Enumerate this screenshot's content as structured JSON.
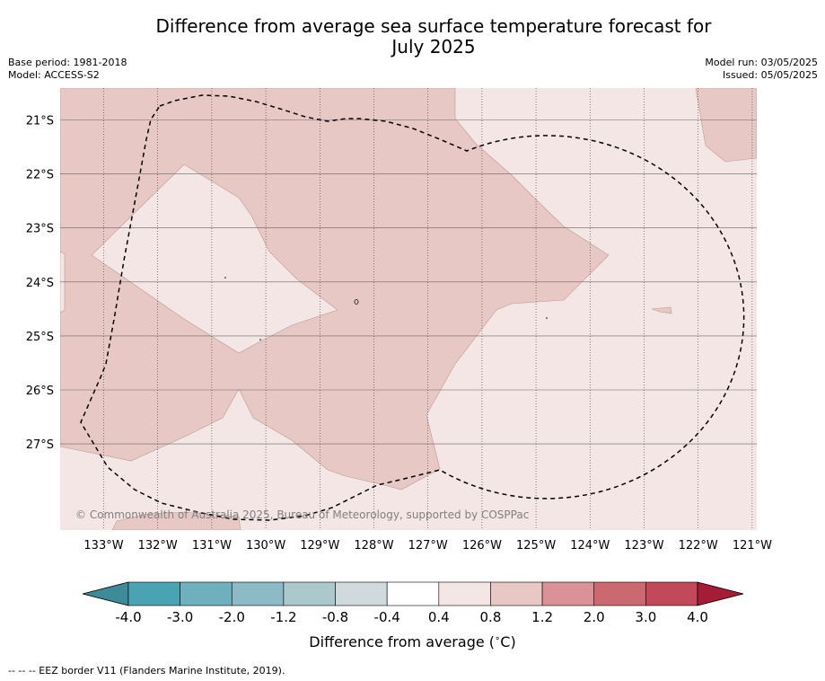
{
  "header": {
    "title_line1": "Difference from average sea surface temperature forecast for",
    "title_line2": "July 2025",
    "base_period": "Base period: 1981-2018",
    "model": "Model: ACCESS-S2",
    "model_run": "Model run: 03/05/2025",
    "issued": "Issued: 05/05/2025"
  },
  "map": {
    "lon_labels": [
      "133°W",
      "132°W",
      "131°W",
      "130°W",
      "129°W",
      "128°W",
      "127°W",
      "126°W",
      "125°W",
      "124°W",
      "123°W",
      "122°W",
      "121°W"
    ],
    "lat_labels": [
      "21°S",
      "22°S",
      "23°S",
      "24°S",
      "25°S",
      "26°S",
      "27°S"
    ],
    "copyright": "© Commonwealth of Australia 2025, Bureau of Meteorology, supported by COSPPac",
    "colors": {
      "warm_0_4_0_8": "#f4e6e5",
      "warm_0_8_1_2": "#e8c8c4"
    }
  },
  "colorbar": {
    "ticks": [
      "-4.0",
      "-3.0",
      "-2.0",
      "-1.2",
      "-0.8",
      "-0.4",
      "0.4",
      "0.8",
      "1.2",
      "2.0",
      "3.0",
      "4.0"
    ],
    "colors": [
      "#3d8b98",
      "#4aa3b3",
      "#6eb0bd",
      "#8cbac5",
      "#abc9cd",
      "#d0dadc",
      "#ffffff",
      "#f4e6e5",
      "#e8c8c4",
      "#da9198",
      "#cc6970",
      "#c2495a",
      "#a51c38"
    ],
    "label": "Difference from average (",
    "label_unit": "C)",
    "label_degree": "∘"
  },
  "footnote": "--  --  -- EEZ border V11 (Flanders Marine Institute, 2019)."
}
